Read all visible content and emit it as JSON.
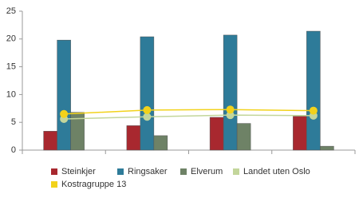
{
  "chart_data": {
    "type": "bar",
    "categories": [
      null,
      null,
      null,
      null
    ],
    "series": [
      {
        "name": "Steinkjer",
        "color": "#a8282f",
        "values": [
          3.4,
          4.4,
          5.9,
          6.1
        ]
      },
      {
        "name": "Ringsaker",
        "color": "#2e7b99",
        "values": [
          19.8,
          20.4,
          20.7,
          21.4
        ]
      },
      {
        "name": "Elverum",
        "color": "#6e8266",
        "values": [
          6.8,
          2.6,
          4.8,
          0.7
        ]
      },
      {
        "name": "Landet uten Oslo",
        "color": "#c3d69b",
        "type": "line",
        "values": [
          5.6,
          6.0,
          6.3,
          6.2
        ]
      },
      {
        "name": "Kostragruppe 13",
        "color": "#f2d21b",
        "type": "line",
        "values": [
          6.5,
          7.2,
          7.3,
          7.1
        ]
      }
    ],
    "ylim": [
      0,
      25
    ],
    "yticks": [
      0,
      5,
      10,
      15,
      20,
      25
    ],
    "grid": false
  }
}
